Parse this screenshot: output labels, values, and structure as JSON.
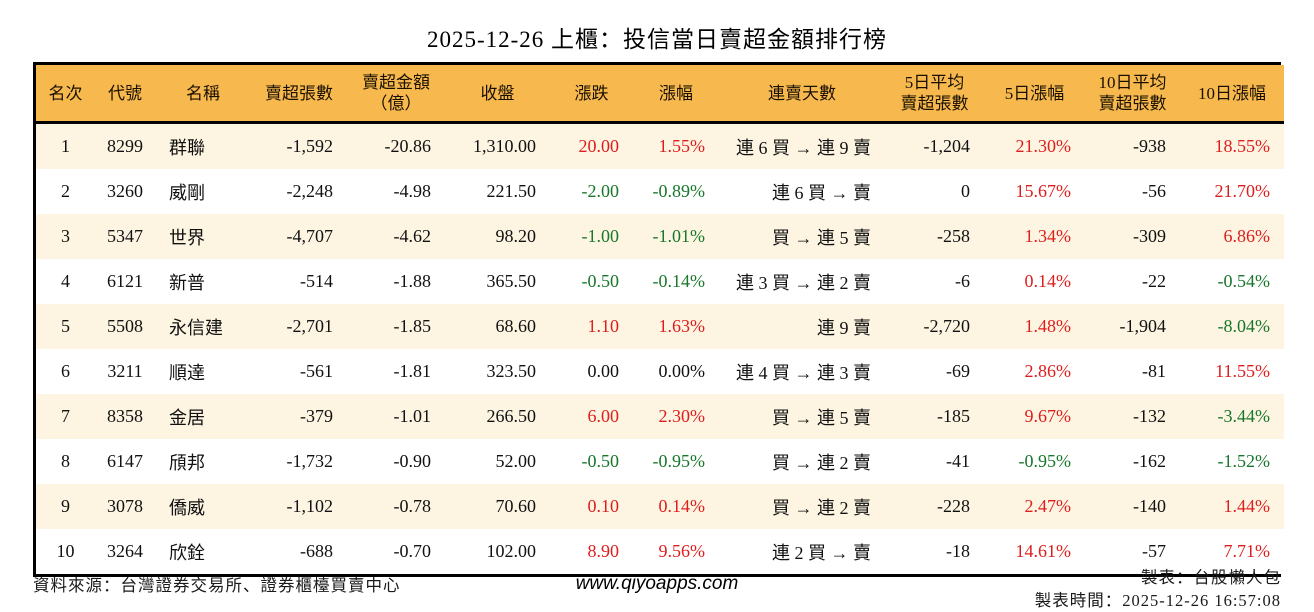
{
  "title": "2025-12-26 上櫃：投信當日賣超金額排行榜",
  "table": {
    "headers": [
      "名次",
      "代號",
      "名稱",
      "賣超張數",
      "賣超金額\n（億）",
      "收盤",
      "漲跌",
      "漲幅",
      "連賣天數",
      "5日平均\n賣超張數",
      "5日漲幅",
      "10日平均\n賣超張數",
      "10日漲幅"
    ],
    "rows": [
      {
        "rank": "1",
        "code": "8299",
        "name": "群聯",
        "vol": "-1,592",
        "amt": "-20.86",
        "close": "1,310.00",
        "chg": "20.00",
        "chg_c": "up",
        "pct": "1.55%",
        "pct_c": "up",
        "streak": "連 6 買 → 連 9 賣",
        "avg5": "-1,204",
        "pct5": "21.30%",
        "pct5_c": "up",
        "avg10": "-938",
        "pct10": "18.55%",
        "pct10_c": "up"
      },
      {
        "rank": "2",
        "code": "3260",
        "name": "威剛",
        "vol": "-2,248",
        "amt": "-4.98",
        "close": "221.50",
        "chg": "-2.00",
        "chg_c": "down",
        "pct": "-0.89%",
        "pct_c": "down",
        "streak": "連 6 買 → 賣",
        "avg5": "0",
        "pct5": "15.67%",
        "pct5_c": "up",
        "avg10": "-56",
        "pct10": "21.70%",
        "pct10_c": "up"
      },
      {
        "rank": "3",
        "code": "5347",
        "name": "世界",
        "vol": "-4,707",
        "amt": "-4.62",
        "close": "98.20",
        "chg": "-1.00",
        "chg_c": "down",
        "pct": "-1.01%",
        "pct_c": "down",
        "streak": "買 → 連 5 賣",
        "avg5": "-258",
        "pct5": "1.34%",
        "pct5_c": "up",
        "avg10": "-309",
        "pct10": "6.86%",
        "pct10_c": "up"
      },
      {
        "rank": "4",
        "code": "6121",
        "name": "新普",
        "vol": "-514",
        "amt": "-1.88",
        "close": "365.50",
        "chg": "-0.50",
        "chg_c": "down",
        "pct": "-0.14%",
        "pct_c": "down",
        "streak": "連 3 買 → 連 2 賣",
        "avg5": "-6",
        "pct5": "0.14%",
        "pct5_c": "up",
        "avg10": "-22",
        "pct10": "-0.54%",
        "pct10_c": "down"
      },
      {
        "rank": "5",
        "code": "5508",
        "name": "永信建",
        "vol": "-2,701",
        "amt": "-1.85",
        "close": "68.60",
        "chg": "1.10",
        "chg_c": "up",
        "pct": "1.63%",
        "pct_c": "up",
        "streak": "連 9 賣",
        "avg5": "-2,720",
        "pct5": "1.48%",
        "pct5_c": "up",
        "avg10": "-1,904",
        "pct10": "-8.04%",
        "pct10_c": "down"
      },
      {
        "rank": "6",
        "code": "3211",
        "name": "順達",
        "vol": "-561",
        "amt": "-1.81",
        "close": "323.50",
        "chg": "0.00",
        "chg_c": "flat",
        "pct": "0.00%",
        "pct_c": "flat",
        "streak": "連 4 買 → 連 3 賣",
        "avg5": "-69",
        "pct5": "2.86%",
        "pct5_c": "up",
        "avg10": "-81",
        "pct10": "11.55%",
        "pct10_c": "up"
      },
      {
        "rank": "7",
        "code": "8358",
        "name": "金居",
        "vol": "-379",
        "amt": "-1.01",
        "close": "266.50",
        "chg": "6.00",
        "chg_c": "up",
        "pct": "2.30%",
        "pct_c": "up",
        "streak": "買 → 連 5 賣",
        "avg5": "-185",
        "pct5": "9.67%",
        "pct5_c": "up",
        "avg10": "-132",
        "pct10": "-3.44%",
        "pct10_c": "down"
      },
      {
        "rank": "8",
        "code": "6147",
        "name": "頎邦",
        "vol": "-1,732",
        "amt": "-0.90",
        "close": "52.00",
        "chg": "-0.50",
        "chg_c": "down",
        "pct": "-0.95%",
        "pct_c": "down",
        "streak": "買 → 連 2 賣",
        "avg5": "-41",
        "pct5": "-0.95%",
        "pct5_c": "down",
        "avg10": "-162",
        "pct10": "-1.52%",
        "pct10_c": "down"
      },
      {
        "rank": "9",
        "code": "3078",
        "name": "僑威",
        "vol": "-1,102",
        "amt": "-0.78",
        "close": "70.60",
        "chg": "0.10",
        "chg_c": "up",
        "pct": "0.14%",
        "pct_c": "up",
        "streak": "買 → 連 2 賣",
        "avg5": "-228",
        "pct5": "2.47%",
        "pct5_c": "up",
        "avg10": "-140",
        "pct10": "1.44%",
        "pct10_c": "up"
      },
      {
        "rank": "10",
        "code": "3264",
        "name": "欣銓",
        "vol": "-688",
        "amt": "-0.70",
        "close": "102.00",
        "chg": "8.90",
        "chg_c": "up",
        "pct": "9.56%",
        "pct_c": "up",
        "streak": "連 2 買 → 賣",
        "avg5": "-18",
        "pct5": "14.61%",
        "pct5_c": "up",
        "avg10": "-57",
        "pct10": "7.71%",
        "pct10_c": "up"
      }
    ]
  },
  "footer": {
    "source": "資料來源：台灣證券交易所、證券櫃檯買賣中心",
    "website": "www.qiyoapps.com",
    "author": "製表：台股懶人包",
    "timestamp": "製表時間：2025-12-26 16:57:08"
  },
  "colors": {
    "up": "#de1d1d",
    "down": "#17772a",
    "flat": "#111111",
    "header_bg": "#f7b94e",
    "row_stripe": "#fdf5e2",
    "border": "#000000"
  }
}
